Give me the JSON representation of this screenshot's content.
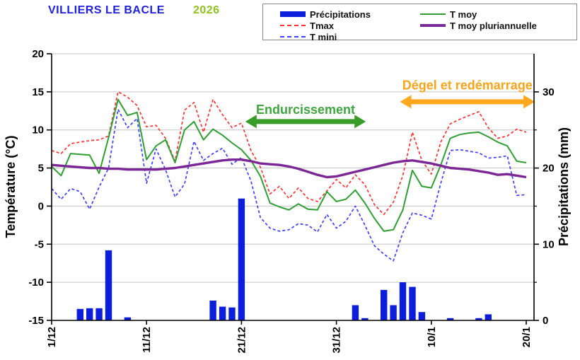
{
  "header": {
    "title": "VILLIERS LE BACLE",
    "year": "2026",
    "title_color": "#1f1fe0",
    "year_color": "#8dc21e"
  },
  "legend": {
    "items": [
      {
        "label": "Précipitations",
        "swatch": "bar",
        "color": "#0a1edb"
      },
      {
        "label": "Tmax",
        "swatch": "dashed",
        "color": "#ff3333"
      },
      {
        "label": "T mini",
        "swatch": "dashed",
        "color": "#4040ff"
      },
      {
        "label": "T moy",
        "swatch": "line",
        "color": "#2f9e33"
      },
      {
        "label": "T moy pluriannuelle",
        "swatch": "thick-line",
        "color": "#7b2796"
      }
    ]
  },
  "chart_data": {
    "type": "combo bar+line",
    "x": [
      "1/12",
      "2/12",
      "3/12",
      "4/12",
      "5/12",
      "6/12",
      "7/12",
      "8/12",
      "9/12",
      "10/12",
      "11/12",
      "12/12",
      "13/12",
      "14/12",
      "15/12",
      "16/12",
      "17/12",
      "18/12",
      "19/12",
      "20/12",
      "21/12",
      "22/12",
      "23/12",
      "24/12",
      "25/12",
      "26/12",
      "27/12",
      "28/12",
      "29/12",
      "30/12",
      "31/12",
      "1/1",
      "2/1",
      "3/1",
      "4/1",
      "5/1",
      "6/1",
      "7/1",
      "8/1",
      "9/1",
      "10/1",
      "11/1",
      "12/1",
      "13/1",
      "14/1",
      "15/1",
      "16/1",
      "17/1",
      "18/1",
      "19/1",
      "20/1"
    ],
    "x_tick_positions": [
      0,
      10,
      20,
      30,
      40,
      50
    ],
    "x_tick_labels": [
      "1/12",
      "11/12",
      "21/12",
      "31/12",
      "10/1",
      "20/1"
    ],
    "ylabel_left": "Température (°C)",
    "ylabel_right": "Précipitations (mm)",
    "ylim_left": [
      -15,
      20
    ],
    "yticks_left": [
      20,
      15,
      10,
      5,
      0,
      -5,
      -10,
      -15
    ],
    "ylim_right": [
      0,
      35
    ],
    "yticks_right": [
      30,
      20,
      10,
      0
    ],
    "yticks_right_minor": [
      25,
      15,
      5
    ],
    "grid": "horizontal",
    "grid_color": "#c6c6c6",
    "series": [
      {
        "name": "Précipitations",
        "type": "bar",
        "axis": "right",
        "color": "#0a1edb",
        "values": [
          0,
          0,
          0,
          1.5,
          1.6,
          1.6,
          9.2,
          0,
          0.4,
          0,
          0,
          0,
          0,
          0,
          0,
          0,
          0,
          2.6,
          1.8,
          1.7,
          16,
          0,
          0,
          0,
          0,
          0,
          0,
          0,
          0,
          0,
          0,
          0,
          2.0,
          0.3,
          0,
          4.0,
          2.0,
          5.0,
          4.4,
          1.1,
          0,
          0,
          0.3,
          0,
          0,
          0.3,
          0.8,
          0,
          0,
          0,
          0
        ]
      },
      {
        "name": "Tmax",
        "type": "line",
        "style": "dashed",
        "axis": "left",
        "color": "#ff3333",
        "values": [
          7.3,
          6.9,
          8.2,
          8.4,
          8.6,
          8.7,
          9.2,
          15.0,
          14.3,
          13.2,
          10.4,
          10.6,
          8.9,
          5.9,
          12.6,
          13.6,
          9.7,
          14.0,
          12.0,
          10.3,
          10.9,
          7.3,
          5.1,
          1.6,
          2.6,
          1.0,
          2.4,
          1.0,
          0.6,
          2.0,
          3.5,
          2.4,
          4.1,
          2.8,
          0.2,
          -1.1,
          0.5,
          4.0,
          9.7,
          6.0,
          4.2,
          8.4,
          10.8,
          11.4,
          11.9,
          12.4,
          10.3,
          8.9,
          9.2,
          10.1,
          9.7
        ]
      },
      {
        "name": "T mini",
        "type": "line",
        "style": "dashed",
        "axis": "left",
        "color": "#4040ff",
        "values": [
          2.3,
          0.9,
          2.3,
          1.9,
          -0.4,
          2.5,
          5.0,
          12.7,
          10.3,
          11.5,
          3.0,
          7.5,
          4.8,
          1.2,
          2.9,
          8.5,
          6.0,
          6.9,
          7.6,
          5.5,
          6.4,
          3.3,
          -1.5,
          -2.9,
          -3.3,
          -3.1,
          -2.3,
          -2.5,
          -3.4,
          -1.1,
          -2.9,
          -2.0,
          0.0,
          -2.5,
          -5.2,
          -6.3,
          -7.2,
          -3.5,
          -0.9,
          -1.2,
          -1.7,
          3.0,
          7.3,
          7.4,
          7.2,
          7.0,
          6.3,
          6.4,
          6.6,
          1.4,
          1.5
        ]
      },
      {
        "name": "T moy",
        "type": "line",
        "style": "solid",
        "axis": "left",
        "color": "#2f9e33",
        "values": [
          5.2,
          4.0,
          6.9,
          6.8,
          6.7,
          4.3,
          9.0,
          14.0,
          11.9,
          12.3,
          6.1,
          7.9,
          8.7,
          5.7,
          10.0,
          11.1,
          8.7,
          10.1,
          9.3,
          8.3,
          7.4,
          6.0,
          3.9,
          0.4,
          -0.1,
          -0.5,
          0.3,
          -0.4,
          -0.5,
          1.9,
          0.6,
          0.9,
          2.1,
          0.4,
          -1.6,
          -3.3,
          -3.1,
          -0.5,
          4.7,
          2.6,
          2.4,
          5.4,
          8.9,
          9.4,
          9.6,
          9.7,
          9.1,
          8.4,
          7.9,
          5.9,
          5.7
        ]
      },
      {
        "name": "T moy pluriannuelle",
        "type": "line",
        "style": "thick",
        "axis": "left",
        "color": "#7b2796",
        "values": [
          5.4,
          5.3,
          5.2,
          5.1,
          5.0,
          5.0,
          4.9,
          4.9,
          4.8,
          4.8,
          4.8,
          4.8,
          4.9,
          5.0,
          5.2,
          5.4,
          5.6,
          5.8,
          6.0,
          6.1,
          6.1,
          5.9,
          5.6,
          5.5,
          5.4,
          5.2,
          4.9,
          4.5,
          4.1,
          3.8,
          3.9,
          4.2,
          4.5,
          4.8,
          5.1,
          5.4,
          5.7,
          5.9,
          6.0,
          5.8,
          5.6,
          5.3,
          5.0,
          4.9,
          4.8,
          4.6,
          4.4,
          4.1,
          4.2,
          4.0,
          3.8
        ]
      }
    ],
    "annotations": [
      {
        "text": "Endurcissement",
        "text_color": "#3fa63f",
        "arrow_color": "#3a9c28",
        "day_start": 20.4,
        "day_end": 33.1,
        "arrow_temp_y": 11.1,
        "text_temp_y": 12.1
      },
      {
        "text": "Dégel et redémarrage",
        "text_color": "#f7a51d",
        "arrow_color": "#ffa81e",
        "day_start": 36.7,
        "day_end": 50.9,
        "arrow_temp_y": 13.7,
        "text_temp_y": 15.3
      }
    ]
  }
}
